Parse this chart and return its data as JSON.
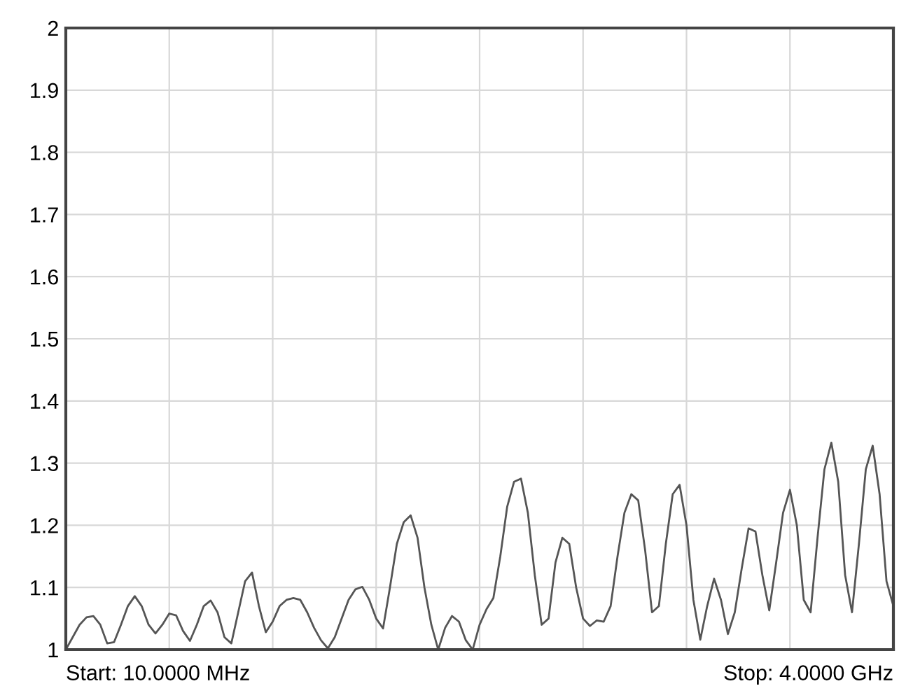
{
  "chart_data": {
    "type": "line",
    "categories": [
      null,
      null,
      null,
      null,
      null,
      null,
      null,
      null,
      null,
      null,
      null,
      null,
      null,
      null,
      null,
      null,
      null,
      null,
      null,
      null,
      null,
      null,
      null,
      null,
      null,
      null,
      null,
      null,
      null,
      null,
      null,
      null,
      null,
      null,
      null,
      null,
      null,
      null,
      null,
      null,
      null,
      null,
      null,
      null,
      null,
      null,
      null,
      null,
      null,
      null,
      null,
      null,
      null,
      null,
      null,
      null,
      null,
      null,
      null,
      null,
      null,
      null,
      null,
      null,
      null,
      null,
      null,
      null,
      null,
      null,
      null,
      null,
      null,
      null,
      null,
      null,
      null,
      null,
      null,
      null,
      null,
      null,
      null,
      null,
      null,
      null,
      null,
      null,
      null,
      null,
      null,
      null,
      null,
      null,
      null,
      null,
      null,
      null,
      null,
      null,
      null,
      null,
      null,
      null,
      null,
      null,
      null,
      null,
      null,
      null,
      null,
      null,
      null,
      null,
      null,
      null,
      null,
      null,
      null,
      null,
      null
    ],
    "series": [
      {
        "color": "#555555",
        "values": [
          1.0,
          1.02,
          1.04,
          1.052,
          1.054,
          1.04,
          1.01,
          1.012,
          1.04,
          1.07,
          1.086,
          1.07,
          1.04,
          1.026,
          1.04,
          1.058,
          1.055,
          1.03,
          1.014,
          1.04,
          1.07,
          1.079,
          1.06,
          1.02,
          1.01,
          1.06,
          1.11,
          1.124,
          1.07,
          1.028,
          1.045,
          1.07,
          1.08,
          1.083,
          1.08,
          1.06,
          1.035,
          1.015,
          1.002,
          1.02,
          1.05,
          1.08,
          1.097,
          1.101,
          1.08,
          1.05,
          1.034,
          1.1,
          1.17,
          1.205,
          1.216,
          1.18,
          1.1,
          1.04,
          1.0,
          1.035,
          1.054,
          1.045,
          1.015,
          1.0,
          1.04,
          1.065,
          1.083,
          1.15,
          1.23,
          1.27,
          1.275,
          1.22,
          1.12,
          1.04,
          1.05,
          1.14,
          1.18,
          1.17,
          1.1,
          1.05,
          1.038,
          1.047,
          1.045,
          1.07,
          1.15,
          1.22,
          1.25,
          1.24,
          1.16,
          1.06,
          1.07,
          1.17,
          1.25,
          1.265,
          1.2,
          1.08,
          1.016,
          1.07,
          1.114,
          1.08,
          1.025,
          1.06,
          1.13,
          1.195,
          1.19,
          1.12,
          1.063,
          1.14,
          1.22,
          1.257,
          1.2,
          1.08,
          1.06,
          1.18,
          1.29,
          1.333,
          1.27,
          1.12,
          1.06,
          1.17,
          1.29,
          1.328,
          1.25,
          1.11,
          1.07
        ]
      }
    ],
    "ylim": [
      1,
      2
    ],
    "yticks": [
      1,
      1.1,
      1.2,
      1.3,
      1.4,
      1.5,
      1.6,
      1.7,
      1.8,
      1.9,
      2
    ],
    "grid": true,
    "annotations": [
      "Start: 10.0000 MHz",
      "Stop: 4.0000 GHz"
    ]
  }
}
